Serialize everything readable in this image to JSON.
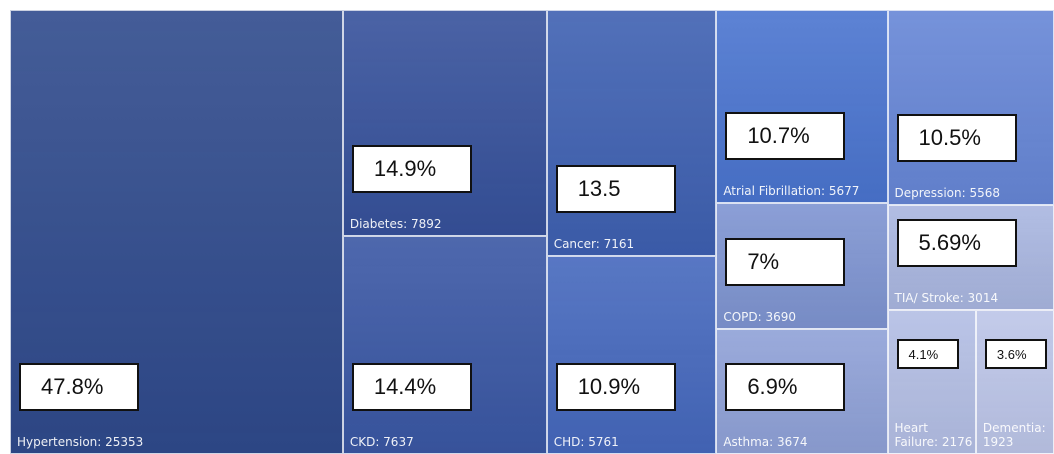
{
  "chart_data": {
    "type": "treemap",
    "labels": [
      "Hypertension: 25353",
      "Diabetes: 7892",
      "CKD: 7637",
      "Cancer: 7161",
      "CHD: 5761",
      "Atrial Fibrillation: 5677",
      "COPD: 3690",
      "Asthma: 3674",
      "Depression: 5568",
      "TIA/ Stroke: 3014",
      "Heart Failure: 2176",
      "Dementia: 1923"
    ],
    "values": [
      25353,
      7892,
      7637,
      7161,
      5761,
      5677,
      3690,
      3674,
      5568,
      3014,
      2176,
      1923
    ],
    "callouts": [
      "47.8%",
      "14.9%",
      "14.4%",
      "13.5",
      "10.9%",
      "10.7%",
      "7%",
      "6.9%",
      "10.5%",
      "5.69%",
      "4.1%",
      "3.6%"
    ],
    "colors": [
      "#2f4a8c",
      "#36519b",
      "#3a57a4",
      "#3e60b1",
      "#4568bd",
      "#4a74cf",
      "#7e94d1",
      "#8fa1d7",
      "#6686d6",
      "#a9b6e0",
      "#b3bee4",
      "#bcc5e8"
    ]
  }
}
